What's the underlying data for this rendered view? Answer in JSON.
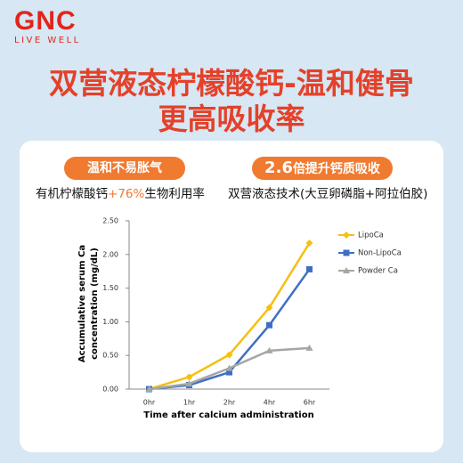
{
  "header": {
    "brand": "GNC",
    "tagline": "LIVE WELL",
    "title_line1": "双营液态柠檬酸钙-温和健骨",
    "title_line2": "更高吸收率"
  },
  "features": [
    {
      "badge": "温和不易胀气",
      "text_before": "有机柠檬酸钙",
      "text_highlight": "+76%",
      "text_after": "生物利用率"
    },
    {
      "badge_number": "2.6",
      "badge_rest": "倍提升钙质吸收",
      "text": "双营液态技术(大豆卵磷脂+阿拉伯胶)"
    }
  ],
  "chart_data": {
    "type": "line",
    "y_label_line1": "Accumulative serum Ca",
    "y_label_line2": "concentration (mg/dL)",
    "x_label": "Time after calcium administration",
    "categories": [
      "0hr",
      "1hr",
      "2hr",
      "4hr",
      "6hr"
    ],
    "series": [
      {
        "name": "LipoCa",
        "color": "#f5c010",
        "marker": "diamond",
        "values": [
          0.0,
          0.18,
          0.51,
          1.21,
          2.17
        ]
      },
      {
        "name": "Non-LipoCa",
        "color": "#3f6fc4",
        "marker": "square",
        "values": [
          0.0,
          0.06,
          0.25,
          0.95,
          1.78
        ]
      },
      {
        "name": "Powder Ca",
        "color": "#a6a6a6",
        "marker": "triangle",
        "values": [
          0.0,
          0.08,
          0.31,
          0.57,
          0.61
        ]
      }
    ],
    "ylim": [
      0,
      2.5
    ],
    "yticks": [
      {
        "value": 0,
        "label": "0.00"
      },
      {
        "value": 0.5,
        "label": "0.50"
      },
      {
        "value": 1,
        "label": "1.00"
      },
      {
        "value": 1.5,
        "label": "1.50"
      },
      {
        "value": 2,
        "label": "2.00"
      },
      {
        "value": 2.5,
        "label": "2.50"
      }
    ],
    "legend": "upper-right"
  }
}
